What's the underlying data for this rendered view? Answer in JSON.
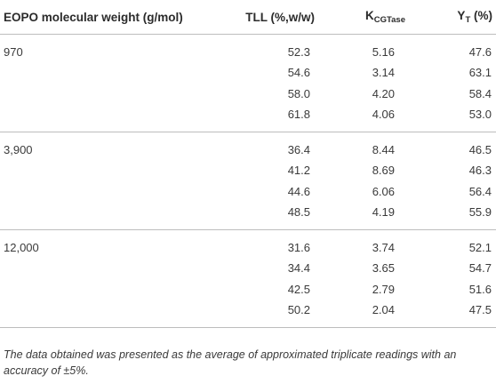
{
  "table": {
    "headers": {
      "mw": "EOPO molecular weight (g/mol)",
      "tll": "TLL (%,w/w)",
      "k_main": "K",
      "k_sub": "CGTase",
      "y_main": "Y",
      "y_sub": "T",
      "y_unit": " (%)"
    },
    "groups": [
      {
        "mw": "970",
        "rows": [
          {
            "tll": "52.3",
            "k": "5.16",
            "y": "47.6"
          },
          {
            "tll": "54.6",
            "k": "3.14",
            "y": "63.1"
          },
          {
            "tll": "58.0",
            "k": "4.20",
            "y": "58.4"
          },
          {
            "tll": "61.8",
            "k": "4.06",
            "y": "53.0"
          }
        ]
      },
      {
        "mw": "3,900",
        "rows": [
          {
            "tll": "36.4",
            "k": "8.44",
            "y": "46.5"
          },
          {
            "tll": "41.2",
            "k": "8.69",
            "y": "46.3"
          },
          {
            "tll": "44.6",
            "k": "6.06",
            "y": "56.4"
          },
          {
            "tll": "48.5",
            "k": "4.19",
            "y": "55.9"
          }
        ]
      },
      {
        "mw": "12,000",
        "rows": [
          {
            "tll": "31.6",
            "k": "3.74",
            "y": "52.1"
          },
          {
            "tll": "34.4",
            "k": "3.65",
            "y": "54.7"
          },
          {
            "tll": "42.5",
            "k": "2.79",
            "y": "51.6"
          },
          {
            "tll": "50.2",
            "k": "2.04",
            "y": "47.5"
          }
        ]
      }
    ]
  },
  "footnote": "The data obtained was presented as the average of approximated triplicate readings with an accuracy of ±5%."
}
